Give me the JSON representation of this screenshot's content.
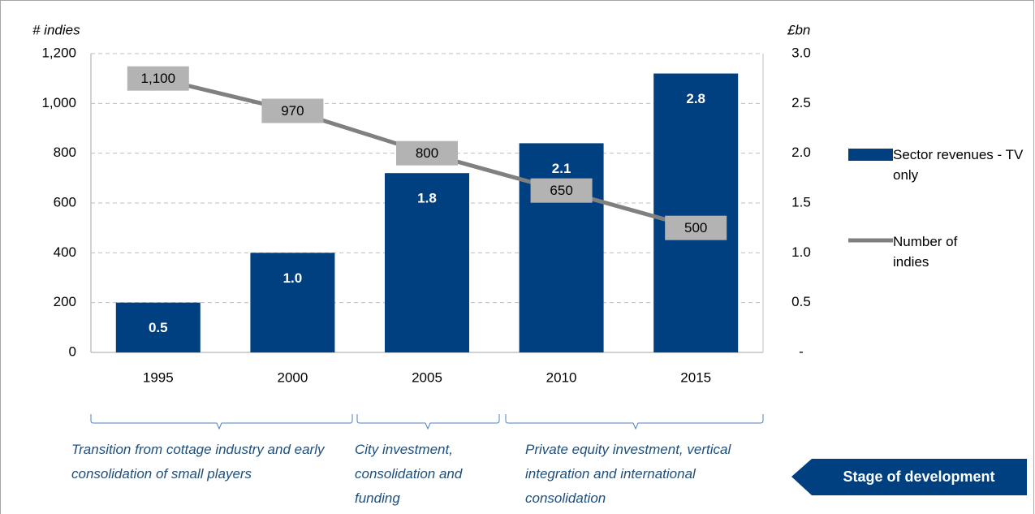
{
  "chart_data": {
    "type": "bar_line",
    "y_label": "# indies",
    "y2_label": "£bn",
    "categories": [
      "1995",
      "2000",
      "2005",
      "2010",
      "2015"
    ],
    "series": [
      {
        "name": "Sector revenues - TV only",
        "type": "bar",
        "axis": "y2",
        "color": "#004080",
        "values": [
          0.5,
          1.0,
          1.8,
          2.1,
          2.8
        ],
        "value_labels": [
          "0.5",
          "1.0",
          "1.8",
          "2.1",
          "2.8"
        ]
      },
      {
        "name": "Number of indies",
        "type": "line",
        "axis": "y",
        "color": "#808080",
        "values": [
          1100,
          970,
          800,
          650,
          500
        ],
        "value_labels": [
          "1,100",
          "970",
          "800",
          "650",
          "500"
        ]
      }
    ],
    "ylim": [
      0,
      1200
    ],
    "yticks": [
      0,
      200,
      400,
      600,
      800,
      {
        "value": 1000,
        "label": "1,000"
      },
      {
        "value": 1200,
        "label": "1,200"
      }
    ],
    "y2lim": [
      0,
      3
    ],
    "y2ticks": [
      {
        "value": 0,
        "label": "-"
      },
      0.5,
      {
        "value": 1,
        "label": "1.0"
      },
      1.5,
      {
        "value": 2,
        "label": "2.0"
      },
      2.5,
      {
        "value": 3,
        "label": "3.0"
      }
    ],
    "grid": true,
    "legend": "right",
    "stages": [
      "Transition from cottage industry and early consolidation of small players",
      "City investment, consolidation and funding",
      "Private equity investment, vertical integration and international consolidation"
    ],
    "stage_label": "Stage of development"
  }
}
